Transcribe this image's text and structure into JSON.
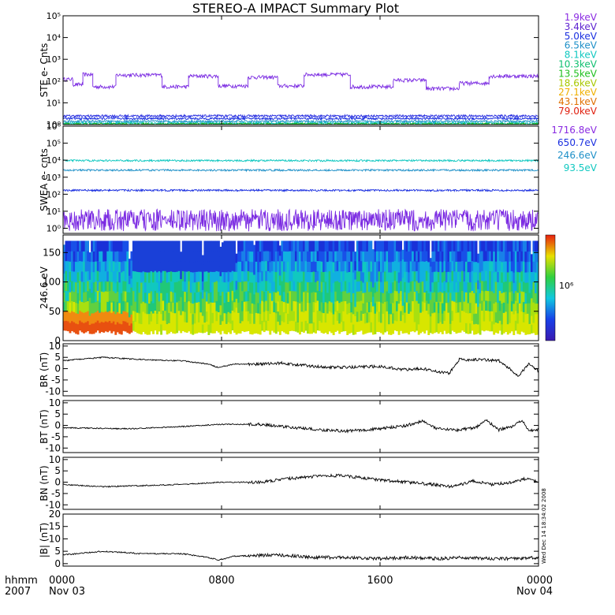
{
  "title": "STEREO-A IMPACT Summary Plot",
  "stamp": "Wed Dec 14 18:34:02 2008",
  "time_axis": {
    "row1_label": "hhmm",
    "row2_label": "2007",
    "ticks": [
      {
        "t": 0,
        "label": "0000",
        "sub": "Nov 03"
      },
      {
        "t": 480,
        "label": "0800",
        "sub": ""
      },
      {
        "t": 960,
        "label": "1600",
        "sub": ""
      },
      {
        "t": 1440,
        "label": "0000",
        "sub": "Nov 04"
      }
    ]
  },
  "legend_ste": [
    {
      "text": "1.9keV",
      "color": "#8a2be2"
    },
    {
      "text": "3.4keV",
      "color": "#5a1fd0"
    },
    {
      "text": "5.0keV",
      "color": "#1a2fe0"
    },
    {
      "text": "6.5keV",
      "color": "#1e90c8"
    },
    {
      "text": "8.1keV",
      "color": "#10c8c0"
    },
    {
      "text": "10.3keV",
      "color": "#10c070"
    },
    {
      "text": "13.5keV",
      "color": "#20c020"
    },
    {
      "text": "18.6keV",
      "color": "#a8c800"
    },
    {
      "text": "27.1keV",
      "color": "#f0b000"
    },
    {
      "text": "43.1keV",
      "color": "#e07000"
    },
    {
      "text": "79.0keV",
      "color": "#e02010"
    }
  ],
  "legend_swea": [
    {
      "text": "1716.8eV",
      "color": "#8a2be2"
    },
    {
      "text": "650.7eV",
      "color": "#1a2fe0"
    },
    {
      "text": "246.6eV",
      "color": "#1e90c8"
    },
    {
      "text": "93.5eV",
      "color": "#10c8c0"
    }
  ],
  "colorbar_label": "10⁶",
  "chart_data": [
    {
      "type": "line",
      "ylabel": "STE e- Cnts",
      "yscale": "log",
      "ylim": [
        1,
        100000
      ],
      "yticks": [
        "10⁰",
        "10¹",
        "10²",
        "10³",
        "10⁴",
        "10⁵"
      ],
      "series": [
        {
          "name": "1.9keV",
          "color": "#7b2be2",
          "segments": [
            [
              0,
              30,
              120
            ],
            [
              30,
              60,
              70
            ],
            [
              60,
              90,
              200
            ],
            [
              90,
              160,
              55
            ],
            [
              160,
              300,
              190
            ],
            [
              300,
              380,
              55
            ],
            [
              380,
              470,
              170
            ],
            [
              470,
              560,
              60
            ],
            [
              560,
              650,
              150
            ],
            [
              650,
              730,
              60
            ],
            [
              730,
              870,
              200
            ],
            [
              870,
              1000,
              55
            ],
            [
              1000,
              1100,
              110
            ],
            [
              1100,
              1200,
              45
            ],
            [
              1200,
              1290,
              80
            ],
            [
              1290,
              1440,
              170
            ]
          ]
        },
        {
          "name": "3.4keV",
          "level": 2.5,
          "color": "#2a2fe0"
        },
        {
          "name": "5.0keV",
          "level": 1.9,
          "color": "#1a2fe0"
        },
        {
          "name": "6.5keV",
          "level": 1.4,
          "color": "#1e90c8"
        },
        {
          "name": "8.1keV",
          "level": 1.15,
          "color": "#10c8c0"
        },
        {
          "name": "10.3keV",
          "level": 1.05,
          "color": "#20c020"
        }
      ]
    },
    {
      "type": "line",
      "ylabel": "SWEA e- cnts",
      "yscale": "log",
      "ylim": [
        0.5,
        1000000
      ],
      "yticks": [
        "10⁰",
        "10¹",
        "10²",
        "10³",
        "10⁴",
        "10⁵",
        "10⁶"
      ],
      "series": [
        {
          "name": "93.5eV",
          "level": 9500,
          "color": "#10c8c0"
        },
        {
          "name": "246.6eV",
          "level": 2600,
          "color": "#1e90c8"
        },
        {
          "name": "650.7eV",
          "level": 170,
          "color": "#1a2fe0"
        },
        {
          "name": "1716.8eV",
          "level": 4,
          "color": "#7b2be2"
        }
      ]
    },
    {
      "type": "heatmap",
      "ylabel": "246.6 eV",
      "ylim": [
        0,
        180
      ],
      "yticks": [
        0,
        50,
        100,
        150
      ],
      "data_ymax": 170
    },
    {
      "type": "line",
      "ylabel": "BR (nT)",
      "ylim": [
        -12,
        11
      ],
      "yticks": [
        -10,
        -5,
        0,
        5,
        10
      ],
      "series": [
        {
          "name": "BR",
          "color": "#000000",
          "points": [
            [
              0,
              3.5
            ],
            [
              120,
              5
            ],
            [
              240,
              4
            ],
            [
              360,
              3.5
            ],
            [
              440,
              2
            ],
            [
              470,
              0.5
            ],
            [
              520,
              2
            ],
            [
              600,
              2
            ],
            [
              660,
              2.5
            ],
            [
              760,
              1
            ],
            [
              840,
              0.5
            ],
            [
              960,
              1
            ],
            [
              1040,
              -0.5
            ],
            [
              1090,
              0
            ],
            [
              1140,
              -1.5
            ],
            [
              1170,
              -2
            ],
            [
              1200,
              4
            ],
            [
              1260,
              4
            ],
            [
              1320,
              3.5
            ],
            [
              1360,
              -1
            ],
            [
              1380,
              -3
            ],
            [
              1410,
              2
            ],
            [
              1440,
              -1
            ]
          ]
        }
      ]
    },
    {
      "type": "line",
      "ylabel": "BT (nT)",
      "ylim": [
        -12,
        11
      ],
      "yticks": [
        -10,
        -5,
        0,
        5,
        10
      ],
      "series": [
        {
          "name": "BT",
          "color": "#000000",
          "points": [
            [
              0,
              -1
            ],
            [
              200,
              -1.5
            ],
            [
              360,
              -0.5
            ],
            [
              480,
              0.5
            ],
            [
              600,
              0.5
            ],
            [
              700,
              -1
            ],
            [
              780,
              -2
            ],
            [
              860,
              -2.5
            ],
            [
              960,
              -1.5
            ],
            [
              1040,
              0
            ],
            [
              1090,
              2
            ],
            [
              1130,
              -1.5
            ],
            [
              1190,
              -2
            ],
            [
              1250,
              -1
            ],
            [
              1280,
              2.5
            ],
            [
              1320,
              -2
            ],
            [
              1360,
              -0.5
            ],
            [
              1390,
              2
            ],
            [
              1410,
              -2
            ],
            [
              1440,
              -2
            ]
          ]
        }
      ]
    },
    {
      "type": "line",
      "ylabel": "BN (nT)",
      "ylim": [
        -12,
        11
      ],
      "yticks": [
        -10,
        -5,
        0,
        5,
        10
      ],
      "series": [
        {
          "name": "BN",
          "color": "#000000",
          "points": [
            [
              0,
              -1
            ],
            [
              120,
              -2
            ],
            [
              240,
              -1.5
            ],
            [
              360,
              -1
            ],
            [
              480,
              0
            ],
            [
              600,
              0
            ],
            [
              680,
              1.5
            ],
            [
              760,
              2.5
            ],
            [
              840,
              3
            ],
            [
              960,
              1
            ],
            [
              1040,
              0
            ],
            [
              1120,
              -1
            ],
            [
              1180,
              -2
            ],
            [
              1240,
              0.5
            ],
            [
              1300,
              -1
            ],
            [
              1360,
              0
            ],
            [
              1400,
              1.5
            ],
            [
              1440,
              0
            ]
          ]
        }
      ]
    },
    {
      "type": "line",
      "ylabel": "|B| (nT)",
      "ylim": [
        -1,
        20
      ],
      "yticks": [
        0,
        5,
        10,
        15,
        20
      ],
      "series": [
        {
          "name": "|B|",
          "color": "#000000",
          "points": [
            [
              0,
              3.5
            ],
            [
              120,
              5
            ],
            [
              240,
              4
            ],
            [
              360,
              4
            ],
            [
              440,
              2.5
            ],
            [
              470,
              1.5
            ],
            [
              520,
              3
            ],
            [
              660,
              3.5
            ],
            [
              760,
              2.5
            ],
            [
              860,
              2.5
            ],
            [
              960,
              2
            ],
            [
              1040,
              2.5
            ],
            [
              1140,
              2
            ],
            [
              1200,
              2.5
            ],
            [
              1300,
              2
            ],
            [
              1380,
              2
            ],
            [
              1440,
              2.5
            ]
          ]
        }
      ]
    }
  ]
}
